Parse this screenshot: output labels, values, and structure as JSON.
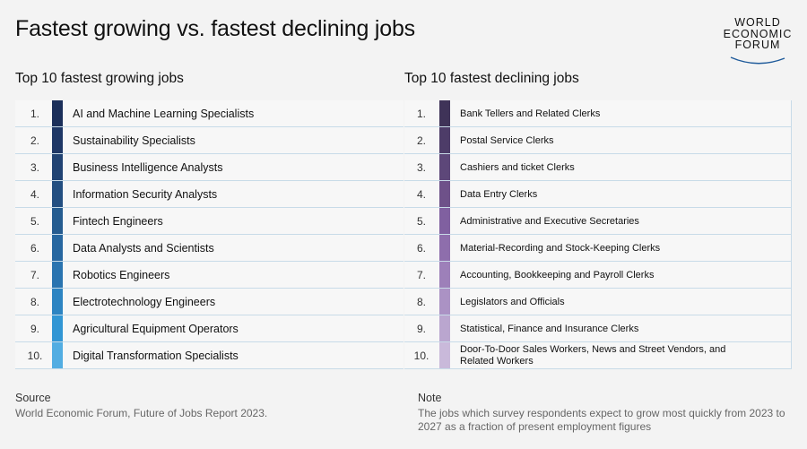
{
  "title": "Fastest growing vs. fastest declining jobs",
  "logo": {
    "line1": "WORLD",
    "line2": "ECONOMIC",
    "line3": "FORUM"
  },
  "growing": {
    "heading": "Top 10 fastest growing jobs",
    "items": [
      {
        "rank": "1.",
        "label": "AI and Machine Learning Specialists",
        "color": "#1b2f5a"
      },
      {
        "rank": "2.",
        "label": "Sustainability Specialists",
        "color": "#1e3766"
      },
      {
        "rank": "3.",
        "label": "Business Intelligence Analysts",
        "color": "#214373"
      },
      {
        "rank": "4.",
        "label": "Information Security Analysts",
        "color": "#234f81"
      },
      {
        "rank": "5.",
        "label": "Fintech Engineers",
        "color": "#255c90"
      },
      {
        "rank": "6.",
        "label": "Data Analysts and Scientists",
        "color": "#2767a0"
      },
      {
        "rank": "7.",
        "label": "Robotics Engineers",
        "color": "#2a74b0"
      },
      {
        "rank": "8.",
        "label": "Electrotechnology Engineers",
        "color": "#2d84c2"
      },
      {
        "rank": "9.",
        "label": "Agricultural Equipment Operators",
        "color": "#3296d4"
      },
      {
        "rank": "10.",
        "label": "Digital Transformation Specialists",
        "color": "#52ade2"
      }
    ]
  },
  "declining": {
    "heading": "Top 10 fastest declining jobs",
    "items": [
      {
        "rank": "1.",
        "label": "Bank Tellers and Related Clerks",
        "color": "#3f3358"
      },
      {
        "rank": "2.",
        "label": "Postal Service Clerks",
        "color": "#4d3c68"
      },
      {
        "rank": "3.",
        "label": "Cashiers and ticket Clerks",
        "color": "#5d4779"
      },
      {
        "rank": "4.",
        "label": "Data Entry Clerks",
        "color": "#6e5189"
      },
      {
        "rank": "5.",
        "label": "Administrative and Executive Secretaries",
        "color": "#8060a0"
      },
      {
        "rank": "6.",
        "label": "Material-Recording and Stock-Keeping Clerks",
        "color": "#8e6eac"
      },
      {
        "rank": "7.",
        "label": "Accounting, Bookkeeping and Payroll Clerks",
        "color": "#9d80b9"
      },
      {
        "rank": "8.",
        "label": "Legislators and Officials",
        "color": "#ab92c4"
      },
      {
        "rank": "9.",
        "label": "Statistical, Finance and Insurance Clerks",
        "color": "#baa6cf"
      },
      {
        "rank": "10.",
        "label": "Door-To-Door Sales Workers, News and Street Vendors, and Related Workers",
        "color": "#c9b9da"
      }
    ]
  },
  "source": {
    "heading": "Source",
    "text": "World Economic Forum, Future of Jobs Report 2023."
  },
  "note": {
    "heading": "Note",
    "text": "The jobs which survey respondents expect to grow most quickly from 2023 to 2027 as a fraction of present employment figures"
  }
}
